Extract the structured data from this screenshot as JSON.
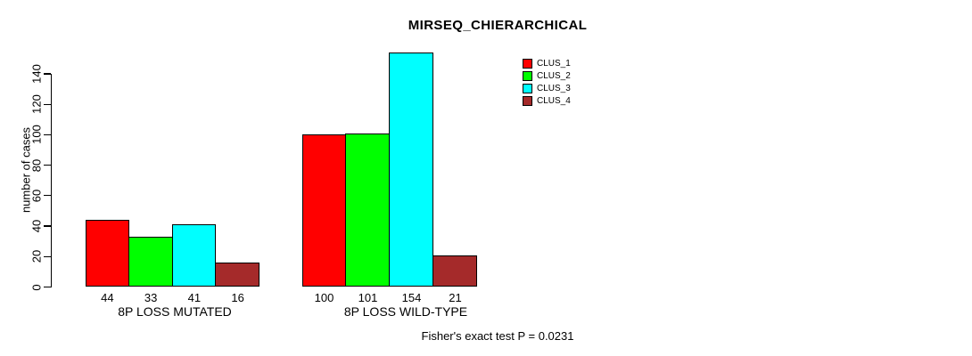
{
  "chart_data": {
    "type": "bar",
    "title": "MIRSEQ_CHIERARCHICAL",
    "ylabel": "number of cases",
    "xlabel": "",
    "categories": [
      "8P LOSS MUTATED",
      "8P LOSS WILD-TYPE"
    ],
    "series": [
      {
        "name": "CLUS_1",
        "color": "#FF0000",
        "values": [
          44,
          100
        ]
      },
      {
        "name": "CLUS_2",
        "color": "#00FF00",
        "values": [
          33,
          101
        ]
      },
      {
        "name": "CLUS_3",
        "color": "#00FFFF",
        "values": [
          41,
          154
        ]
      },
      {
        "name": "CLUS_4",
        "color": "#A52A2A",
        "values": [
          16,
          21
        ]
      }
    ],
    "yticks": [
      0,
      20,
      40,
      60,
      80,
      100,
      120,
      140
    ],
    "ylim": [
      0,
      154
    ],
    "grid": false,
    "legend_position": "top-right",
    "bar_value_labels_shown": true,
    "annotation": "Fisher's exact test P = 0.0231"
  },
  "colors": {
    "background": "#FFFFFF",
    "axis": "#000000",
    "text": "#000000"
  }
}
